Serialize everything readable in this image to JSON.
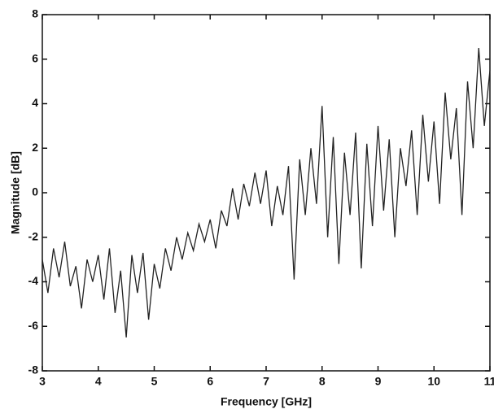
{
  "chart_data": {
    "type": "line",
    "xlabel": "Frequency [GHz]",
    "ylabel": "Magnitude [dB]",
    "x": [
      3.0,
      3.1,
      3.2,
      3.3,
      3.4,
      3.5,
      3.6,
      3.7,
      3.8,
      3.9,
      4.0,
      4.1,
      4.2,
      4.3,
      4.4,
      4.5,
      4.6,
      4.7,
      4.8,
      4.9,
      5.0,
      5.1,
      5.2,
      5.3,
      5.4,
      5.5,
      5.6,
      5.7,
      5.8,
      5.9,
      6.0,
      6.1,
      6.2,
      6.3,
      6.4,
      6.5,
      6.6,
      6.7,
      6.8,
      6.9,
      7.0,
      7.1,
      7.2,
      7.3,
      7.4,
      7.5,
      7.6,
      7.7,
      7.8,
      7.9,
      8.0,
      8.1,
      8.2,
      8.3,
      8.4,
      8.5,
      8.6,
      8.7,
      8.8,
      8.9,
      9.0,
      9.1,
      9.2,
      9.3,
      9.4,
      9.5,
      9.6,
      9.7,
      9.8,
      9.9,
      10.0,
      10.1,
      10.2,
      10.3,
      10.4,
      10.5,
      10.6,
      10.7,
      10.8,
      10.9,
      11.0
    ],
    "series": [
      {
        "color": "#222222",
        "values": [
          -3,
          -4.5,
          -2.5,
          -3.8,
          -2.2,
          -4.2,
          -3.3,
          -5.2,
          -3,
          -4,
          -2.8,
          -4.8,
          -2.5,
          -5.4,
          -3.5,
          -6.5,
          -2.8,
          -4.5,
          -2.7,
          -5.7,
          -3.2,
          -4.3,
          -2.5,
          -3.5,
          -2,
          -3,
          -1.8,
          -2.6,
          -1.4,
          -2.2,
          -1.2,
          -2.5,
          -0.8,
          -1.5,
          0.2,
          -1.2,
          0.4,
          -0.6,
          0.9,
          -0.5,
          1.0,
          -1.5,
          0.3,
          -1.0,
          1.2,
          -3.9,
          1.5,
          -1.0,
          2.0,
          -0.5,
          3.9,
          -2.0,
          2.5,
          -3.2,
          1.8,
          -1.0,
          2.7,
          -3.4,
          2.2,
          -1.5,
          3.0,
          -0.8,
          2.4,
          -2.0,
          2.0,
          0.3,
          2.8,
          -1.0,
          3.5,
          0.5,
          3.2,
          -0.5,
          4.5,
          1.5,
          3.8,
          -1.0,
          5.0,
          2.0,
          6.5,
          3.0,
          5.5
        ]
      }
    ],
    "xlim": [
      3,
      11
    ],
    "ylim": [
      -8,
      8
    ],
    "xticks": [
      3,
      4,
      5,
      6,
      7,
      8,
      9,
      10,
      11
    ],
    "yticks": [
      -8,
      -6,
      -4,
      -2,
      0,
      2,
      4,
      6,
      8
    ]
  }
}
